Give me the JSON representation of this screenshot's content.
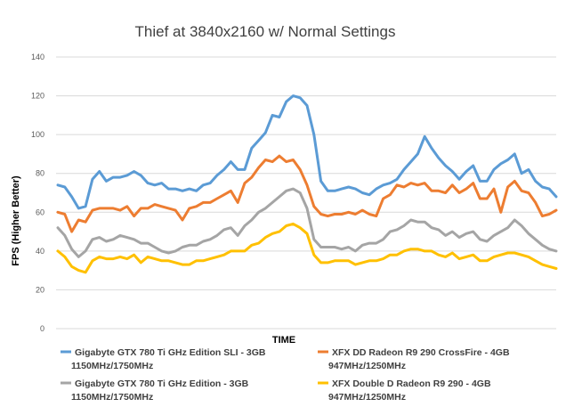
{
  "chart_data": {
    "type": "line",
    "title": "Thief at 3840x2160 w/ Normal Settings",
    "xlabel": "TIME",
    "ylabel": "FPS (Higher Better)",
    "ylim": [
      0,
      140
    ],
    "yticks": [
      0,
      20,
      40,
      60,
      80,
      100,
      120,
      140
    ],
    "grid": true,
    "legend_position": "bottom",
    "series": [
      {
        "name": "Gigabyte GTX 780 Ti GHz Edition SLI - 3GB 1150MHz/1750MHz",
        "name_lines": [
          "Gigabyte GTX 780 Ti GHz Edition SLI - 3GB",
          "1150MHz/1750MHz"
        ],
        "color": "#5b9bd5",
        "values": [
          74,
          73,
          68,
          62,
          63,
          77,
          81,
          76,
          78,
          78,
          79,
          81,
          79,
          75,
          74,
          75,
          72,
          72,
          71,
          72,
          71,
          74,
          75,
          79,
          82,
          86,
          82,
          82,
          93,
          97,
          101,
          110,
          109,
          117,
          120,
          119,
          115,
          100,
          76,
          71,
          71,
          72,
          73,
          72,
          70,
          69,
          72,
          74,
          75,
          77,
          82,
          86,
          90,
          99,
          93,
          88,
          84,
          81,
          77,
          81,
          84,
          76,
          76,
          82,
          85,
          87,
          90,
          80,
          82,
          76,
          73,
          72,
          68
        ]
      },
      {
        "name": "XFX DD Radeon R9 290 CrossFire - 4GB 947MHz/1250MHz",
        "name_lines": [
          "XFX DD Radeon R9 290 CrossFire - 4GB",
          "947MHz/1250MHz"
        ],
        "color": "#ed7d31",
        "values": [
          60,
          59,
          50,
          56,
          55,
          61,
          62,
          62,
          62,
          61,
          63,
          58,
          62,
          62,
          64,
          63,
          62,
          61,
          56,
          62,
          63,
          65,
          65,
          67,
          69,
          71,
          65,
          75,
          78,
          83,
          87,
          86,
          89,
          86,
          87,
          82,
          74,
          63,
          59,
          58,
          59,
          59,
          60,
          59,
          61,
          59,
          58,
          67,
          69,
          74,
          73,
          75,
          74,
          75,
          71,
          71,
          70,
          74,
          70,
          72,
          75,
          67,
          67,
          72,
          60,
          73,
          76,
          71,
          70,
          65,
          58,
          59,
          61
        ]
      },
      {
        "name": "Gigabyte GTX 780 Ti GHz Edition - 3GB 1150MHz/1750MHz",
        "name_lines": [
          "Gigabyte GTX 780 Ti GHz Edition - 3GB",
          "1150MHz/1750MHz"
        ],
        "color": "#a5a5a5",
        "values": [
          52,
          48,
          41,
          37,
          40,
          46,
          47,
          45,
          46,
          48,
          47,
          46,
          44,
          44,
          42,
          40,
          39,
          40,
          42,
          43,
          43,
          45,
          46,
          48,
          51,
          52,
          48,
          53,
          56,
          60,
          62,
          65,
          68,
          71,
          72,
          70,
          62,
          46,
          42,
          42,
          42,
          41,
          42,
          40,
          43,
          44,
          44,
          46,
          50,
          51,
          53,
          56,
          55,
          55,
          52,
          51,
          48,
          50,
          47,
          49,
          50,
          46,
          45,
          48,
          50,
          52,
          56,
          53,
          49,
          46,
          43,
          41,
          40
        ]
      },
      {
        "name": "XFX Double D Radeon R9 290 - 4GB 947MHz/1250MHz",
        "name_lines": [
          "XFX Double D Radeon R9 290 - 4GB",
          "947MHz/1250MHz"
        ],
        "color": "#ffc000",
        "values": [
          40,
          37,
          32,
          30,
          29,
          35,
          37,
          36,
          36,
          37,
          36,
          38,
          34,
          37,
          36,
          35,
          35,
          34,
          33,
          33,
          35,
          35,
          36,
          37,
          38,
          40,
          40,
          40,
          43,
          44,
          47,
          49,
          50,
          53,
          54,
          52,
          49,
          38,
          34,
          34,
          35,
          35,
          35,
          33,
          34,
          35,
          35,
          36,
          38,
          38,
          40,
          41,
          41,
          40,
          40,
          38,
          37,
          39,
          36,
          37,
          38,
          35,
          35,
          37,
          38,
          39,
          39,
          38,
          37,
          35,
          33,
          32,
          31
        ]
      }
    ]
  }
}
